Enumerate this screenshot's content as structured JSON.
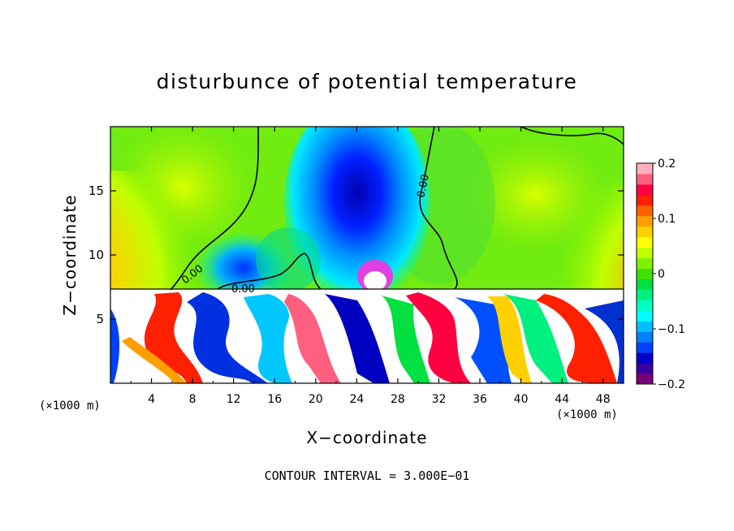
{
  "chart_data": {
    "type": "heatmap",
    "title": "disturbunce of potential temperature",
    "xlabel": "X−coordinate",
    "ylabel": "Z−coordinate",
    "x_unit": "(×1000 m)",
    "x_unit_right": "(×1000 m)",
    "xlim": [
      0,
      50
    ],
    "ylim": [
      0,
      20
    ],
    "x_ticks": [
      4,
      8,
      12,
      16,
      20,
      24,
      28,
      32,
      36,
      40,
      44,
      48
    ],
    "x_tick_labels": [
      "4",
      "8",
      "12",
      "16",
      "20",
      "24",
      "28",
      "32",
      "36",
      "40",
      "44",
      "48"
    ],
    "y_ticks": [
      5,
      10,
      15
    ],
    "y_tick_labels": [
      "5",
      "10",
      "15"
    ],
    "colorbar": {
      "range": [
        -0.2,
        0.2
      ],
      "ticks": [
        0.2,
        0.1,
        0,
        -0.1,
        -0.2
      ],
      "tick_labels": [
        "0.2",
        "0.1",
        "0",
        "−0.1",
        "−0.2"
      ],
      "colors": [
        "#7a007a",
        "#3a00a0",
        "#0000c8",
        "#0040ff",
        "#0080ff",
        "#00c0ff",
        "#00ffff",
        "#00ffc0",
        "#00f080",
        "#00e040",
        "#40e000",
        "#80f000",
        "#c0ff00",
        "#ffff00",
        "#ffd000",
        "#ffa000",
        "#ff6000",
        "#ff2000",
        "#ff0040",
        "#ff6080",
        "#ffb0c0"
      ]
    },
    "contour_labels": [
      "0.00",
      "0.00",
      "0.00"
    ],
    "contour_interval_text": "CONTOUR INTERVAL = 3.000E−01"
  }
}
